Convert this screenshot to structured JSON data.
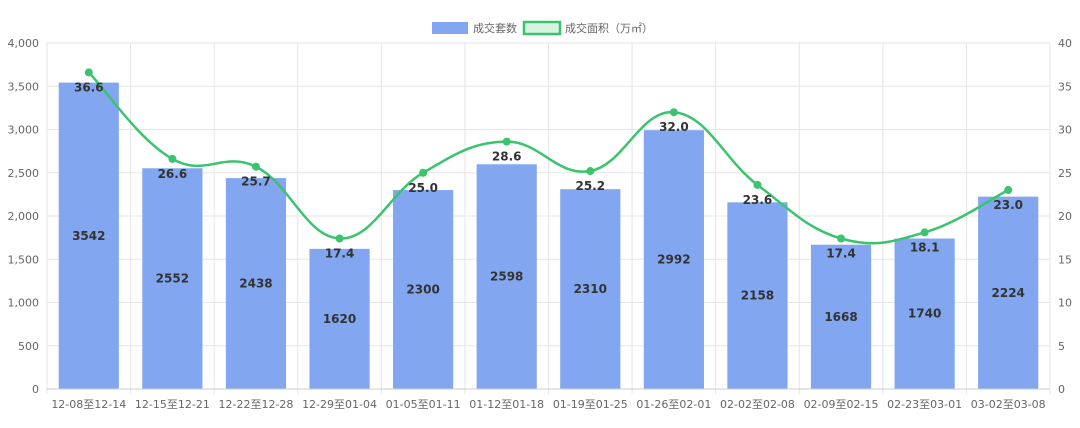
{
  "chart_data": {
    "type": "bar",
    "categories": [
      "12-08至12-14",
      "12-15至12-21",
      "12-22至12-28",
      "12-29至01-04",
      "01-05至01-11",
      "01-12至01-18",
      "01-19至01-25",
      "01-26至02-01",
      "02-02至02-08",
      "02-09至02-15",
      "02-23至03-01",
      "03-02至03-08"
    ],
    "series": [
      {
        "name": "成交套数",
        "type": "bar",
        "axis": "left",
        "values": [
          3542,
          2552,
          2438,
          1620,
          2300,
          2598,
          2310,
          2992,
          2158,
          1668,
          1740,
          2224
        ],
        "color": "#82a6f0"
      },
      {
        "name": "成交面积（万㎡）",
        "type": "line",
        "axis": "right",
        "values": [
          36.6,
          26.6,
          25.7,
          17.4,
          25.0,
          28.6,
          25.2,
          32.0,
          23.6,
          17.4,
          18.1,
          23.0
        ],
        "color": "#3cc36e"
      }
    ],
    "y_left": {
      "min": 0,
      "max": 4000,
      "step": 500,
      "ticks": [
        "0",
        "500",
        "1,000",
        "1,500",
        "2,000",
        "2,500",
        "3,000",
        "3,500",
        "4,000"
      ]
    },
    "y_right": {
      "min": 0,
      "max": 40,
      "step": 5,
      "ticks": [
        "0",
        "5",
        "10",
        "15",
        "20",
        "25",
        "30",
        "35",
        "40"
      ]
    },
    "line_labels": [
      "36.6",
      "26.6",
      "25.7",
      "17.4",
      "25.0",
      "28.6",
      "25.2",
      "32.0",
      "23.6",
      "17.4",
      "18.1",
      "23.0"
    ],
    "grid": true,
    "legend": "top-center",
    "title": "",
    "xlabel": "",
    "ylabel": ""
  }
}
